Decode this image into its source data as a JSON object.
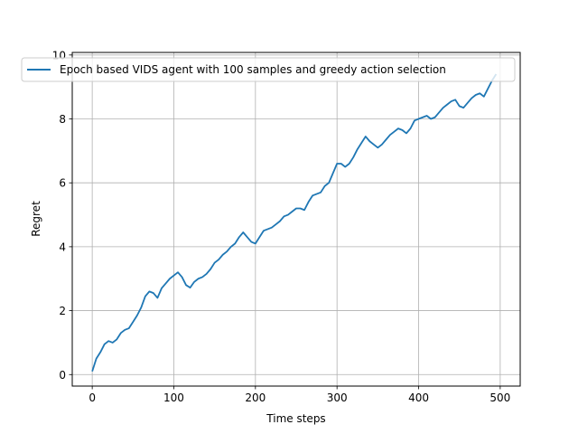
{
  "chart_data": {
    "type": "line",
    "title": "",
    "xlabel": "Time steps",
    "ylabel": "Regret",
    "xlim": [
      -24.5,
      524.5
    ],
    "ylim": [
      -0.36,
      10.08
    ],
    "xticks": [
      0,
      100,
      200,
      300,
      400,
      500
    ],
    "yticks": [
      0,
      2,
      4,
      6,
      8,
      10
    ],
    "grid": true,
    "legend_position": "top",
    "colors": {
      "series": "#1f77b4",
      "grid": "#b0b0b0",
      "axes": "#000000"
    },
    "series": [
      {
        "name": "Epoch based VIDS agent with 100 samples and greedy action selection",
        "x": [
          0,
          5,
          10,
          15,
          20,
          25,
          30,
          35,
          40,
          45,
          50,
          55,
          60,
          65,
          70,
          75,
          80,
          85,
          90,
          95,
          100,
          105,
          110,
          115,
          120,
          125,
          130,
          135,
          140,
          145,
          150,
          155,
          160,
          165,
          170,
          175,
          180,
          185,
          190,
          195,
          200,
          205,
          210,
          215,
          220,
          225,
          230,
          235,
          240,
          245,
          250,
          255,
          260,
          265,
          270,
          275,
          280,
          285,
          290,
          295,
          300,
          305,
          310,
          315,
          320,
          325,
          330,
          335,
          340,
          345,
          350,
          355,
          360,
          365,
          370,
          375,
          380,
          385,
          390,
          395,
          400,
          405,
          410,
          415,
          420,
          425,
          430,
          435,
          440,
          445,
          450,
          455,
          460,
          465,
          470,
          475,
          480,
          485,
          490,
          495
        ],
        "values": [
          0.1,
          0.5,
          0.7,
          0.95,
          1.05,
          1.0,
          1.1,
          1.3,
          1.4,
          1.45,
          1.65,
          1.85,
          2.1,
          2.45,
          2.6,
          2.55,
          2.4,
          2.7,
          2.85,
          3.0,
          3.1,
          3.2,
          3.05,
          2.8,
          2.72,
          2.9,
          3.0,
          3.05,
          3.15,
          3.3,
          3.5,
          3.6,
          3.75,
          3.85,
          4.0,
          4.1,
          4.3,
          4.45,
          4.3,
          4.15,
          4.1,
          4.3,
          4.5,
          4.55,
          4.6,
          4.7,
          4.8,
          4.95,
          5.0,
          5.1,
          5.2,
          5.2,
          5.15,
          5.4,
          5.6,
          5.65,
          5.7,
          5.9,
          6.0,
          6.3,
          6.6,
          6.6,
          6.5,
          6.6,
          6.8,
          7.05,
          7.25,
          7.45,
          7.3,
          7.2,
          7.1,
          7.2,
          7.35,
          7.5,
          7.6,
          7.7,
          7.65,
          7.55,
          7.7,
          7.95,
          8.0,
          8.05,
          8.1,
          8.0,
          8.05,
          8.2,
          8.35,
          8.45,
          8.55,
          8.6,
          8.4,
          8.35,
          8.5,
          8.65,
          8.75,
          8.8,
          8.7,
          8.95,
          9.2,
          9.4
        ]
      }
    ]
  }
}
